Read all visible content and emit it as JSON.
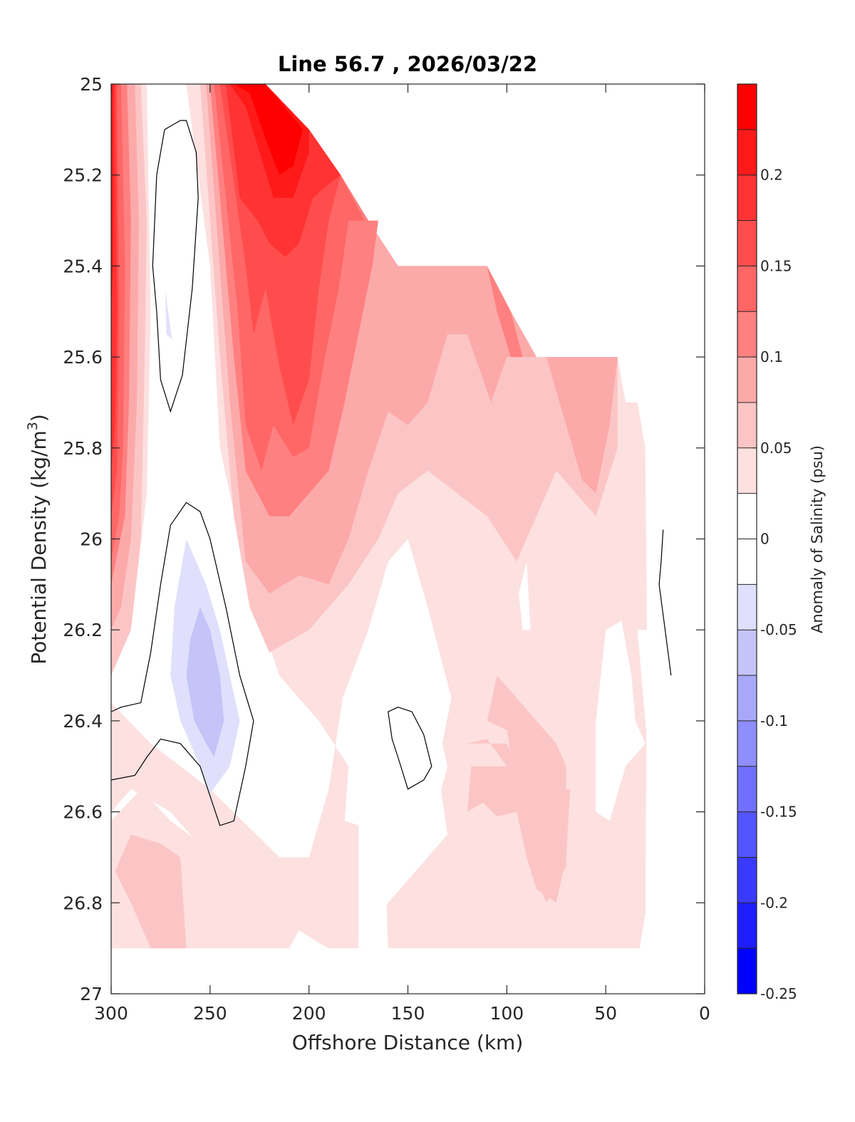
{
  "chart_data": {
    "type": "contourf",
    "title": "Line 56.7 , 2026/03/22",
    "xlabel": "Offshore Distance (km)",
    "ylabel": "Potential Density (kg/m",
    "ylabel_sup": "3",
    "ylabel_close": ")",
    "colorbar_label": "Anomaly of Salinity (psu)",
    "xlim": [
      300,
      0
    ],
    "ylim": [
      27,
      25
    ],
    "x_reversed": true,
    "y_reversed": true,
    "x_ticks": [
      300,
      250,
      200,
      150,
      100,
      50,
      0
    ],
    "x_tick_labels": [
      "300",
      "250",
      "200",
      "150",
      "100",
      "50",
      "0"
    ],
    "y_ticks": [
      25,
      25.2,
      25.4,
      25.6,
      25.8,
      26,
      26.2,
      26.4,
      26.6,
      26.8,
      27
    ],
    "y_tick_labels": [
      "25",
      "25.2",
      "25.4",
      "25.6",
      "25.8",
      "26",
      "26.2",
      "26.4",
      "26.6",
      "26.8",
      "27"
    ],
    "colorbar": {
      "clim": [
        -0.25,
        0.25
      ],
      "step": 0.025,
      "ticks": [
        0.2,
        0.15,
        0.1,
        0.05,
        0,
        -0.05,
        -0.1,
        -0.15,
        -0.2,
        -0.25
      ],
      "tick_labels": [
        "0.2",
        "0.15",
        "0.1",
        "0.05",
        "0",
        "-0.05",
        "-0.1",
        "-0.15",
        "-0.2",
        "-0.25"
      ],
      "colors_top_to_bottom": [
        "#ff0000",
        "#ff1a1a",
        "#ff3333",
        "#ff4d4d",
        "#ff6666",
        "#ff8080",
        "#fca9a9",
        "#fcc5c5",
        "#fde0e0",
        "#ffffff",
        "#ffffff",
        "#e0e0fc",
        "#c4c4f8",
        "#a8a8f8",
        "#8e8eff",
        "#7070ff",
        "#5555ff",
        "#3a3aff",
        "#1e1eff",
        "#0000ff"
      ]
    },
    "zero_contour_color": "#000000",
    "regions": [
      {
        "level": 0.0375,
        "note": "background anomaly band",
        "poly": [
          [
            300,
            25.0
          ],
          [
            0,
            25.0
          ],
          [
            0,
            26.9
          ],
          [
            300,
            26.9
          ]
        ]
      }
    ],
    "features": [
      {
        "name": "high-salinity core near surface",
        "x_range": [
          230,
          200
        ],
        "y_range": [
          25.0,
          25.2
        ],
        "value": 0.24
      },
      {
        "name": "negative anomaly core upper",
        "x_center": 265,
        "y_center": 25.4,
        "value": -0.03
      },
      {
        "name": "negative anomaly core lower",
        "x_center": 255,
        "y_center": 26.3,
        "value": -0.07
      }
    ]
  }
}
